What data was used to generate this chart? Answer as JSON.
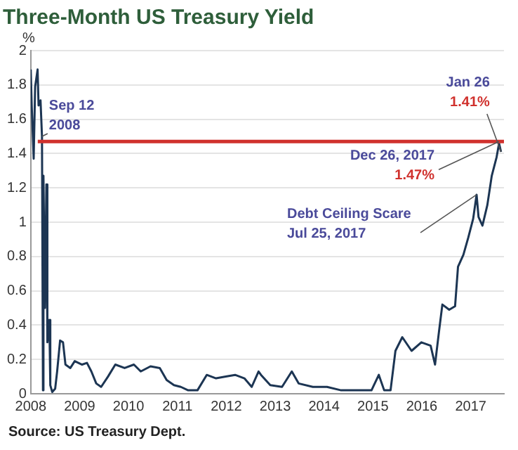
{
  "chart_data": {
    "type": "line",
    "title": "Three-Month US Treasury Yield",
    "ylabel": "%",
    "x": [
      2008.0,
      2008.02,
      2008.06,
      2008.09,
      2008.14,
      2008.16,
      2008.2,
      2008.23,
      2008.25,
      2008.26,
      2008.29,
      2008.32,
      2008.34,
      2008.38,
      2008.4,
      2008.44,
      2008.5,
      2008.54,
      2008.6,
      2008.66,
      2008.71,
      2008.81,
      2008.9,
      2009.05,
      2009.15,
      2009.24,
      2009.34,
      2009.44,
      2009.58,
      2009.73,
      2009.92,
      2010.11,
      2010.25,
      2010.45,
      2010.64,
      2010.78,
      2010.93,
      2011.07,
      2011.22,
      2011.41,
      2011.6,
      2011.79,
      2011.99,
      2012.18,
      2012.37,
      2012.52,
      2012.66,
      2012.71,
      2012.9,
      2013.14,
      2013.34,
      2013.48,
      2013.77,
      2014.06,
      2014.35,
      2014.64,
      2014.97,
      2015.12,
      2015.23,
      2015.36,
      2015.46,
      2015.6,
      2015.79,
      2015.99,
      2016.18,
      2016.27,
      2016.35,
      2016.42,
      2016.56,
      2016.68,
      2016.74,
      2016.85,
      2016.95,
      2017.05,
      2017.12,
      2017.16,
      2017.24,
      2017.34,
      2017.43,
      2017.53,
      2017.58,
      2017.62
    ],
    "series": [
      {
        "color": "#1c3553",
        "values": [
          1.89,
          1.68,
          1.37,
          1.79,
          1.89,
          1.68,
          1.71,
          1.5,
          0.02,
          1.27,
          0.5,
          1.22,
          0.3,
          0.43,
          0.05,
          0.01,
          0.03,
          0.13,
          0.31,
          0.3,
          0.17,
          0.15,
          0.19,
          0.17,
          0.18,
          0.13,
          0.06,
          0.04,
          0.1,
          0.17,
          0.15,
          0.17,
          0.13,
          0.16,
          0.15,
          0.08,
          0.05,
          0.04,
          0.02,
          0.02,
          0.11,
          0.09,
          0.1,
          0.11,
          0.09,
          0.04,
          0.13,
          0.11,
          0.05,
          0.04,
          0.13,
          0.06,
          0.04,
          0.04,
          0.02,
          0.02,
          0.02,
          0.11,
          0.02,
          0.02,
          0.25,
          0.33,
          0.25,
          0.3,
          0.28,
          0.17,
          0.36,
          0.52,
          0.49,
          0.51,
          0.74,
          0.81,
          0.91,
          1.02,
          1.16,
          1.03,
          0.98,
          1.1,
          1.27,
          1.38,
          1.46,
          1.41
        ]
      }
    ],
    "xlim": [
      2008,
      2017.68
    ],
    "xticks": [
      2008,
      2009,
      2010,
      2011,
      2012,
      2013,
      2014,
      2015,
      2016,
      2017
    ],
    "ylim": [
      0,
      2
    ],
    "yticks": [
      0,
      0.2,
      0.4,
      0.6,
      0.8,
      1,
      1.2,
      1.4,
      1.6,
      1.8,
      2
    ],
    "grid": "y",
    "legend": false,
    "marker": "none",
    "line_style": "solid",
    "ref_lines": [
      {
        "axis": "y",
        "value": 1.47,
        "color": "#d0312d"
      }
    ],
    "annotations": [
      {
        "text": "Sep 12\n2008",
        "x": 2008.23,
        "y": 1.5
      },
      {
        "text": "Jan 26\n1.41%",
        "x": 2017.62,
        "y": 1.41
      },
      {
        "text": "Dec 26, 2017\n1.47%",
        "x": 2017.58,
        "y": 1.47
      },
      {
        "text": "Debt Ceiling Scare\nJul 25, 2017",
        "x": 2017.12,
        "y": 1.16
      },
      "Source: US Treasury Dept."
    ]
  }
}
